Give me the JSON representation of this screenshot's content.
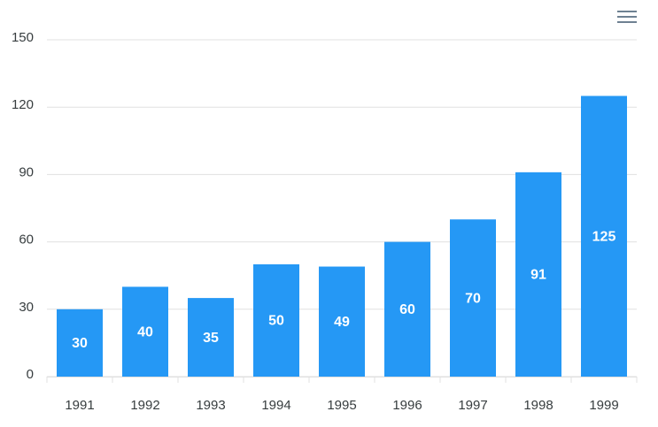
{
  "chart_data": {
    "type": "bar",
    "categories": [
      "1991",
      "1992",
      "1993",
      "1994",
      "1995",
      "1996",
      "1997",
      "1998",
      "1999"
    ],
    "values": [
      30,
      40,
      35,
      50,
      49,
      60,
      70,
      91,
      125
    ],
    "color": "#2598f5",
    "ylim": [
      0,
      150
    ],
    "yticks": [
      0,
      30,
      60,
      90,
      120,
      150
    ],
    "grid": true
  }
}
